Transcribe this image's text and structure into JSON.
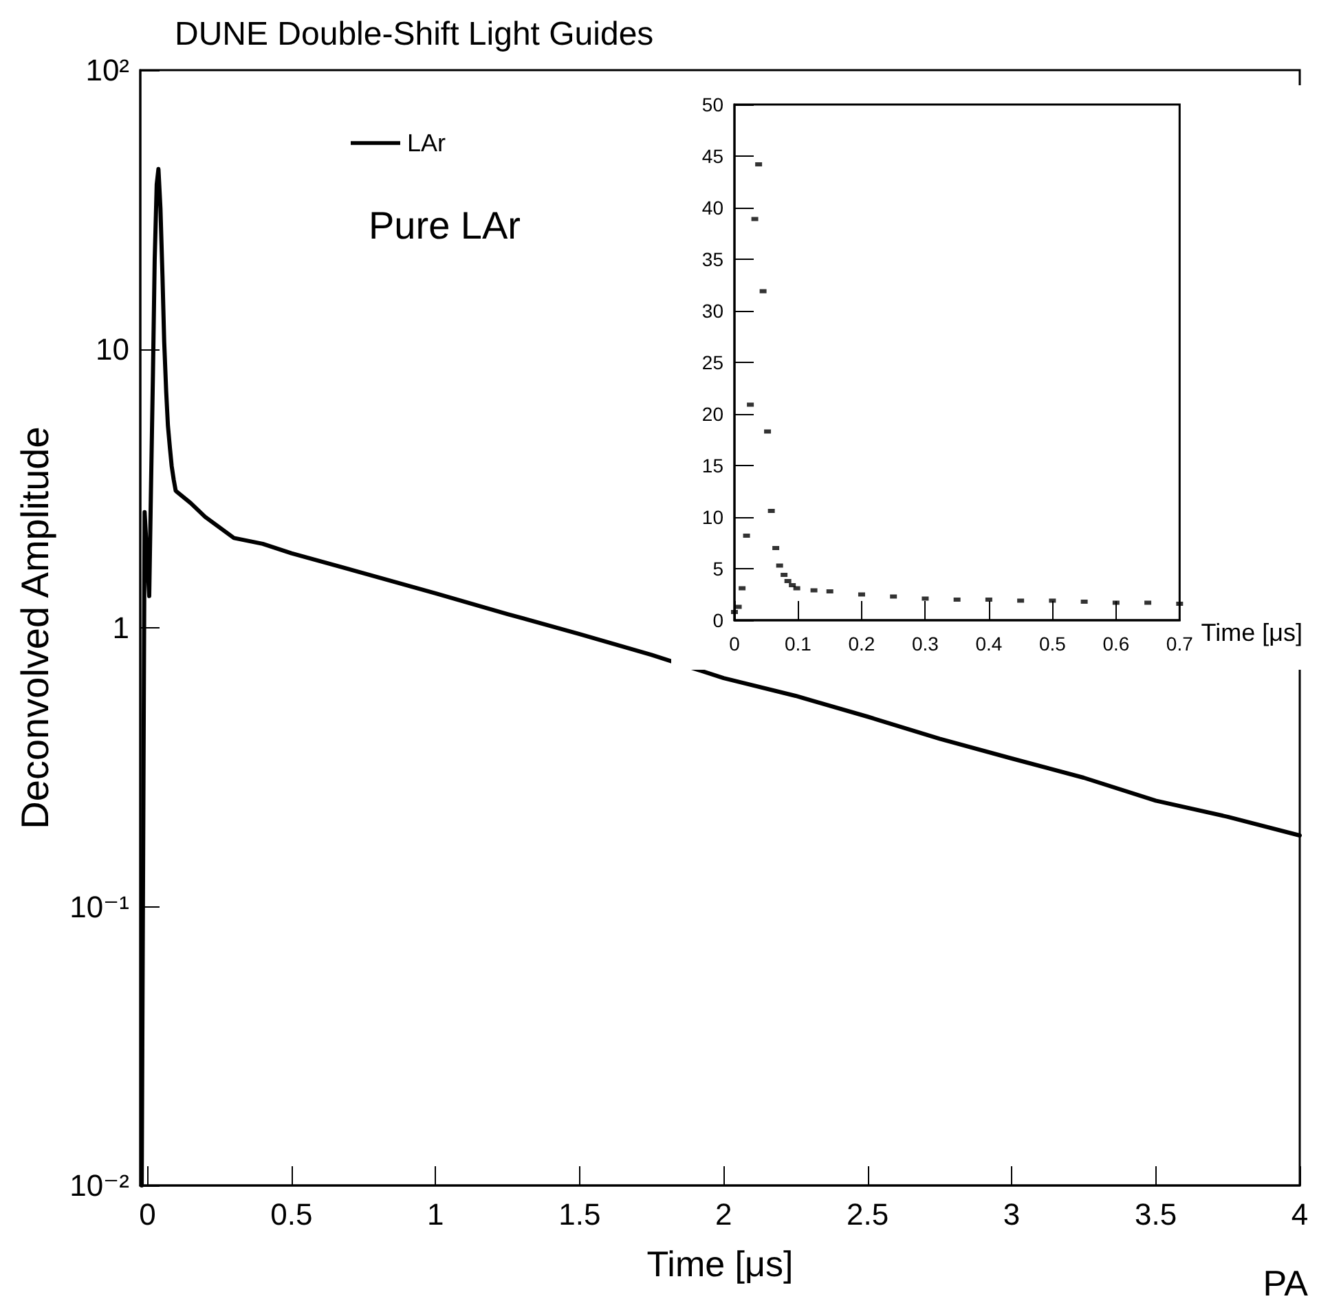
{
  "chart_data": [
    {
      "type": "line",
      "title": "DUNE Double-Shift Light Guides",
      "xlabel": "Time [μs]",
      "ylabel": "Deconvolved Amplitude",
      "log": "y",
      "grid": false,
      "legend": "top left",
      "marker": "none",
      "line_style": "solid",
      "xlim": [
        -0.025,
        4
      ],
      "xticks": [
        0,
        0.5,
        1,
        1.5,
        2,
        2.5,
        3,
        3.5,
        4
      ],
      "ylim": [
        0.01,
        100
      ],
      "yticks": [
        {
          "value": 0.01,
          "label": "10⁻²"
        },
        {
          "value": 0.1,
          "label": "10⁻¹"
        },
        1,
        10,
        {
          "value": 100,
          "label": "10²"
        }
      ],
      "annotations": [
        "Pure LAr",
        "PA"
      ],
      "series": [
        {
          "name": "LAr",
          "color": "#000000",
          "x": [
            -0.02,
            -0.01,
            0.006,
            0.012,
            0.019,
            0.025,
            0.032,
            0.038,
            0.045,
            0.052,
            0.058,
            0.065,
            0.071,
            0.078,
            0.084,
            0.091,
            0.098,
            0.15,
            0.2,
            0.3,
            0.4,
            0.5,
            0.75,
            1,
            1.25,
            1.5,
            1.75,
            2,
            2.25,
            2.5,
            2.75,
            3,
            3.25,
            3.5,
            3.75,
            4
          ],
          "values": [
            0.01,
            2.6,
            1.3,
            3.1,
            8.2,
            20.9,
            38.9,
            44.2,
            31.9,
            18.3,
            10.6,
            7.0,
            5.3,
            4.4,
            3.8,
            3.4,
            3.1,
            2.8,
            2.5,
            2.1,
            2.0,
            1.85,
            1.57,
            1.33,
            1.12,
            0.95,
            0.8,
            0.66,
            0.57,
            0.48,
            0.4,
            0.34,
            0.29,
            0.24,
            0.21,
            0.18
          ]
        }
      ]
    },
    {
      "type": "scatter",
      "xlabel": "Time [μs]",
      "grid": false,
      "marker": "square",
      "xlim": [
        0,
        0.7
      ],
      "xticks": [
        0,
        0.1,
        0.2,
        0.3,
        0.4,
        0.5,
        0.6,
        0.7
      ],
      "ylim": [
        0,
        50
      ],
      "yticks": [
        0,
        5,
        10,
        15,
        20,
        25,
        30,
        35,
        40,
        45,
        50
      ],
      "series": [
        {
          "color": "#000000",
          "x": [
            0,
            0.006,
            0.012,
            0.019,
            0.025,
            0.032,
            0.038,
            0.045,
            0.052,
            0.058,
            0.065,
            0.071,
            0.078,
            0.084,
            0.091,
            0.098,
            0.125,
            0.15,
            0.2,
            0.25,
            0.3,
            0.35,
            0.4,
            0.45,
            0.5,
            0.55,
            0.6,
            0.65,
            0.7
          ],
          "values": [
            0.8,
            1.3,
            3.1,
            8.2,
            20.9,
            38.9,
            44.2,
            31.9,
            18.3,
            10.6,
            7.0,
            5.3,
            4.4,
            3.8,
            3.4,
            3.1,
            2.9,
            2.8,
            2.5,
            2.3,
            2.1,
            2.0,
            2.0,
            1.9,
            1.9,
            1.8,
            1.7,
            1.7,
            1.6
          ]
        }
      ]
    }
  ]
}
